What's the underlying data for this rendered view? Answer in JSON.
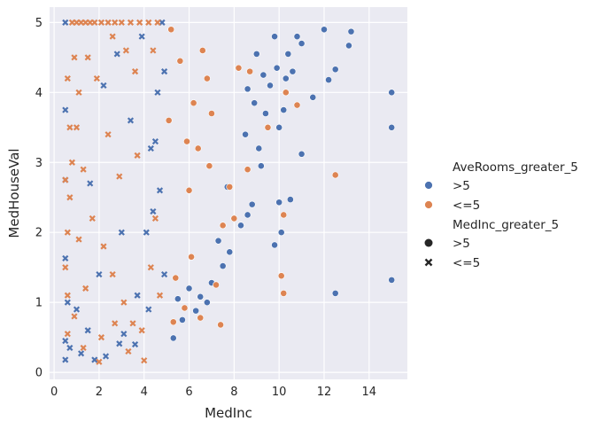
{
  "chart_data": {
    "type": "scatter",
    "xlabel": "MedInc",
    "ylabel": "MedHouseVal",
    "xlim": [
      -0.2,
      15.7
    ],
    "ylim": [
      -0.1,
      5.22
    ],
    "xticks": [
      0,
      2,
      4,
      6,
      8,
      10,
      12,
      14
    ],
    "yticks": [
      0,
      1,
      2,
      3,
      4,
      5
    ],
    "grid": true,
    "legend_position": "right",
    "hue_title": "AveRooms_greater_5",
    "hue_entries": [
      {
        "label": ">5",
        "color": "#4c72b0"
      },
      {
        "label": "<=5",
        "color": "#dd8452"
      }
    ],
    "style_title": "MedInc_greater_5",
    "style_entries": [
      {
        "label": ">5",
        "marker": "circle"
      },
      {
        "label": "<=5",
        "marker": "x"
      }
    ],
    "series": [
      {
        "hue": ">5",
        "style": ">5",
        "points": [
          [
            15.0,
            4.0
          ],
          [
            15.0,
            3.5
          ],
          [
            15.0,
            1.32
          ],
          [
            12.5,
            1.13
          ],
          [
            11.0,
            3.12
          ],
          [
            12.5,
            4.33
          ],
          [
            12.2,
            4.18
          ],
          [
            11.5,
            3.93
          ],
          [
            10.5,
            2.47
          ],
          [
            10.1,
            2.0
          ],
          [
            9.8,
            1.82
          ],
          [
            10.0,
            2.43
          ],
          [
            10.0,
            3.5
          ],
          [
            10.2,
            3.75
          ],
          [
            10.6,
            4.3
          ],
          [
            11.0,
            4.7
          ],
          [
            13.2,
            4.87
          ],
          [
            13.1,
            4.67
          ],
          [
            12.0,
            4.9
          ],
          [
            9.8,
            4.8
          ],
          [
            9.2,
            2.95
          ],
          [
            8.8,
            2.4
          ],
          [
            9.1,
            3.2
          ],
          [
            9.4,
            3.7
          ],
          [
            9.6,
            4.1
          ],
          [
            8.6,
            2.25
          ],
          [
            8.3,
            2.1
          ],
          [
            7.8,
            1.72
          ],
          [
            7.5,
            1.52
          ],
          [
            7.0,
            1.28
          ],
          [
            6.8,
            1.0
          ],
          [
            6.3,
            0.88
          ],
          [
            5.7,
            0.75
          ],
          [
            5.3,
            0.49
          ],
          [
            6.5,
            1.08
          ],
          [
            7.3,
            1.88
          ],
          [
            5.5,
            1.05
          ],
          [
            6.0,
            1.2
          ],
          [
            9.0,
            4.55
          ],
          [
            8.5,
            3.4
          ],
          [
            7.7,
            2.65
          ],
          [
            9.3,
            4.25
          ],
          [
            10.3,
            4.2
          ],
          [
            10.8,
            4.8
          ],
          [
            9.9,
            4.35
          ],
          [
            9.5,
            3.5
          ],
          [
            8.9,
            3.85
          ],
          [
            8.6,
            4.05
          ],
          [
            10.4,
            4.55
          ]
        ]
      },
      {
        "hue": "<=5",
        "style": ">5",
        "points": [
          [
            12.5,
            2.82
          ],
          [
            10.2,
            2.25
          ],
          [
            10.1,
            1.38
          ],
          [
            10.2,
            1.13
          ],
          [
            10.3,
            4.0
          ],
          [
            10.8,
            3.82
          ],
          [
            9.5,
            3.5
          ],
          [
            8.7,
            4.3
          ],
          [
            8.0,
            2.2
          ],
          [
            7.2,
            1.25
          ],
          [
            7.4,
            0.68
          ],
          [
            6.5,
            0.78
          ],
          [
            5.8,
            0.92
          ],
          [
            5.3,
            0.72
          ],
          [
            6.9,
            2.95
          ],
          [
            6.0,
            2.6
          ],
          [
            7.5,
            2.1
          ],
          [
            8.2,
            4.35
          ],
          [
            6.2,
            3.85
          ],
          [
            5.6,
            4.45
          ],
          [
            7.0,
            3.7
          ],
          [
            5.9,
            3.3
          ],
          [
            6.6,
            4.6
          ],
          [
            5.2,
            4.9
          ],
          [
            7.8,
            2.65
          ],
          [
            5.4,
            1.35
          ],
          [
            6.1,
            1.65
          ],
          [
            8.6,
            2.9
          ],
          [
            6.4,
            3.2
          ],
          [
            5.1,
            3.6
          ],
          [
            6.8,
            4.2
          ]
        ]
      },
      {
        "hue": ">5",
        "style": "<=5",
        "points": [
          [
            0.5,
            5.0
          ],
          [
            0.5,
            3.75
          ],
          [
            0.5,
            2.75
          ],
          [
            0.5,
            1.63
          ],
          [
            0.5,
            0.45
          ],
          [
            0.5,
            0.18
          ],
          [
            0.6,
            1.0
          ],
          [
            0.7,
            0.35
          ],
          [
            1.2,
            0.27
          ],
          [
            1.8,
            0.18
          ],
          [
            2.3,
            0.23
          ],
          [
            2.9,
            0.41
          ],
          [
            3.1,
            0.55
          ],
          [
            3.6,
            0.4
          ],
          [
            1.5,
            0.6
          ],
          [
            4.8,
            5.0
          ],
          [
            4.6,
            4.0
          ],
          [
            4.3,
            3.2
          ],
          [
            4.1,
            2.0
          ],
          [
            3.7,
            1.1
          ],
          [
            2.2,
            4.1
          ],
          [
            2.8,
            4.55
          ],
          [
            3.4,
            3.6
          ],
          [
            4.7,
            2.6
          ],
          [
            4.9,
            1.4
          ],
          [
            4.2,
            0.9
          ],
          [
            2.0,
            1.4
          ],
          [
            1.0,
            0.9
          ],
          [
            3.9,
            4.8
          ],
          [
            4.5,
            3.3
          ],
          [
            4.4,
            2.3
          ],
          [
            3.0,
            2.0
          ],
          [
            1.6,
            2.7
          ],
          [
            4.9,
            4.3
          ]
        ]
      },
      {
        "hue": "<=5",
        "style": "<=5",
        "points": [
          [
            4.0,
            0.17
          ],
          [
            2.0,
            0.15
          ],
          [
            1.3,
            0.35
          ],
          [
            0.6,
            0.55
          ],
          [
            0.8,
            5.0
          ],
          [
            1.0,
            5.0
          ],
          [
            1.2,
            5.0
          ],
          [
            1.4,
            5.0
          ],
          [
            1.6,
            5.0
          ],
          [
            1.8,
            5.0
          ],
          [
            2.1,
            5.0
          ],
          [
            2.4,
            5.0
          ],
          [
            2.7,
            5.0
          ],
          [
            3.0,
            5.0
          ],
          [
            3.4,
            5.0
          ],
          [
            3.8,
            5.0
          ],
          [
            4.2,
            5.0
          ],
          [
            4.6,
            5.0
          ],
          [
            0.9,
            4.5
          ],
          [
            1.1,
            4.0
          ],
          [
            0.6,
            4.2
          ],
          [
            0.7,
            3.5
          ],
          [
            1.0,
            3.5
          ],
          [
            0.8,
            3.0
          ],
          [
            0.5,
            2.75
          ],
          [
            0.7,
            2.5
          ],
          [
            0.6,
            2.0
          ],
          [
            0.5,
            1.5
          ],
          [
            0.6,
            1.1
          ],
          [
            1.5,
            4.5
          ],
          [
            1.9,
            4.2
          ],
          [
            2.6,
            4.8
          ],
          [
            3.2,
            4.6
          ],
          [
            3.6,
            4.3
          ],
          [
            1.3,
            2.9
          ],
          [
            1.7,
            2.2
          ],
          [
            2.2,
            1.8
          ],
          [
            2.6,
            1.4
          ],
          [
            3.1,
            1.0
          ],
          [
            3.5,
            0.7
          ],
          [
            3.9,
            0.6
          ],
          [
            4.3,
            1.5
          ],
          [
            4.5,
            2.2
          ],
          [
            4.7,
            1.1
          ],
          [
            0.9,
            0.8
          ],
          [
            1.1,
            1.9
          ],
          [
            2.4,
            3.4
          ],
          [
            2.9,
            2.8
          ],
          [
            3.7,
            3.1
          ],
          [
            4.4,
            4.6
          ],
          [
            1.4,
            1.2
          ],
          [
            2.1,
            0.5
          ],
          [
            2.7,
            0.7
          ],
          [
            3.3,
            0.3
          ]
        ]
      }
    ]
  }
}
